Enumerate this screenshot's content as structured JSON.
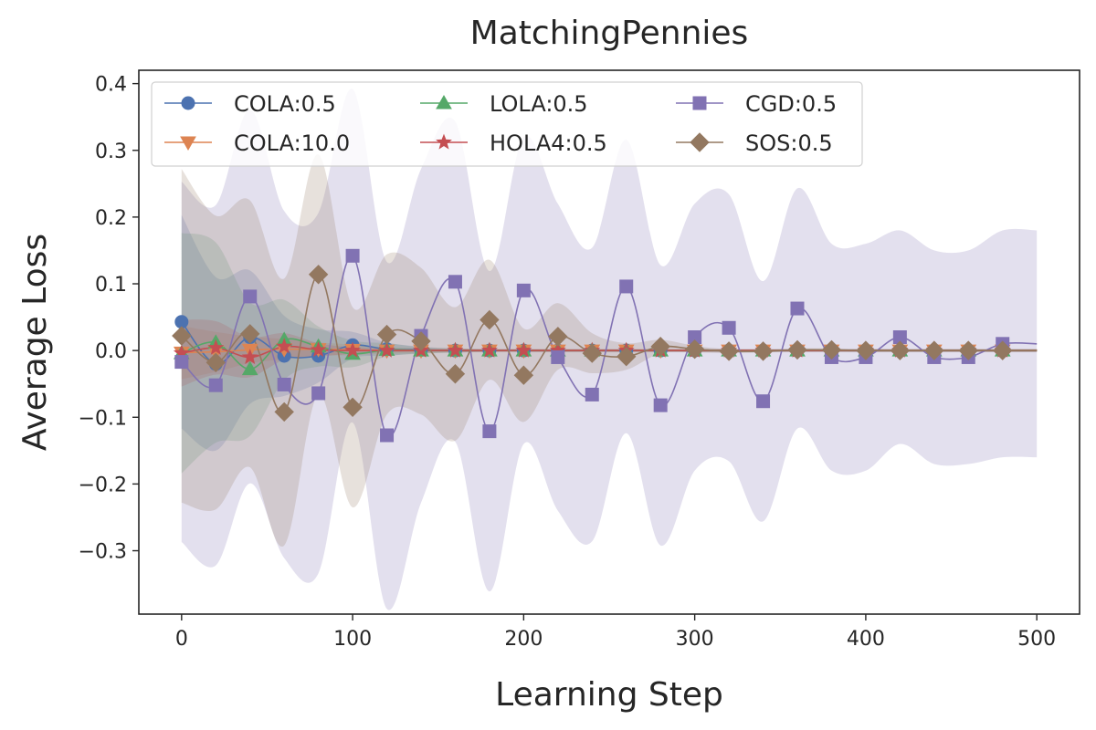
{
  "chart_data": {
    "type": "line",
    "title": "MatchingPennies",
    "xlabel": "Learning Step",
    "ylabel": "Average Loss",
    "xlim": [
      -25,
      525
    ],
    "ylim": [
      -0.395,
      0.42
    ],
    "xticks": [
      0,
      100,
      200,
      300,
      400,
      500
    ],
    "xtick_labels": [
      "0",
      "100",
      "200",
      "300",
      "400",
      "500"
    ],
    "yticks": [
      -0.3,
      -0.2,
      -0.1,
      0.0,
      0.1,
      0.2,
      0.3,
      0.4
    ],
    "ytick_labels": [
      "−0.3",
      "−0.2",
      "−0.1",
      "0.0",
      "0.1",
      "0.2",
      "0.3",
      "0.4"
    ],
    "legend_position": "top-left",
    "legend_columns": 3,
    "series": [
      {
        "name": "COLA:0.5",
        "color": "#4c72b0",
        "marker": "circle",
        "x": [
          0,
          20,
          40,
          60,
          80,
          100,
          120,
          140,
          160,
          180,
          200,
          220,
          240,
          260,
          280,
          300,
          320,
          340,
          360,
          380,
          400,
          420,
          440,
          460,
          480
        ],
        "y": [
          0.043,
          -0.02,
          0.02,
          -0.008,
          -0.008,
          0.008,
          0.002,
          0.001,
          0.0,
          0.0,
          0.0,
          0.0,
          0.0,
          0.0,
          0.0,
          0.0,
          0.0,
          0.0,
          0.0,
          0.0,
          0.0,
          0.0,
          0.0,
          0.0,
          0.0
        ],
        "band": [
          0.16,
          0.13,
          0.1,
          0.06,
          0.04,
          0.02,
          0.01,
          0.005,
          0.003,
          0.002,
          0.002,
          0.002,
          0.002,
          0.002,
          0.002,
          0.002,
          0.002,
          0.002,
          0.002,
          0.002,
          0.002,
          0.002,
          0.002,
          0.002,
          0.002
        ]
      },
      {
        "name": "COLA:10.0",
        "color": "#dd8452",
        "marker": "triangle-down",
        "x": [
          0,
          20,
          40,
          60,
          80,
          100,
          120,
          140,
          160,
          180,
          200,
          220,
          240,
          260,
          280,
          300,
          320,
          340,
          360,
          380,
          400,
          420,
          440,
          460,
          480
        ],
        "y": [
          -0.003,
          -0.002,
          0.001,
          0.002,
          0.002,
          0.001,
          0.0,
          0.0,
          0.0,
          0.0,
          0.0,
          0.0,
          0.0,
          0.0,
          0.0,
          0.0,
          0.0,
          0.0,
          0.0,
          0.0,
          0.0,
          0.0,
          0.0,
          0.0,
          0.0
        ],
        "band": [
          0.04,
          0.03,
          0.02,
          0.015,
          0.01,
          0.008,
          0.005,
          0.004,
          0.003,
          0.002,
          0.002,
          0.002,
          0.002,
          0.002,
          0.002,
          0.002,
          0.002,
          0.002,
          0.002,
          0.002,
          0.002,
          0.002,
          0.002,
          0.002,
          0.002
        ]
      },
      {
        "name": "LOLA:0.5",
        "color": "#55a868",
        "marker": "triangle-up",
        "x": [
          0,
          20,
          40,
          60,
          80,
          100,
          120,
          140,
          160,
          180,
          200,
          220,
          240,
          260,
          280,
          300,
          320,
          340,
          360,
          380,
          400,
          420,
          440,
          460,
          480
        ],
        "y": [
          -0.004,
          0.012,
          -0.028,
          0.016,
          0.006,
          -0.005,
          0.001,
          0.0,
          0.0,
          0.0,
          0.0,
          0.0,
          0.0,
          0.0,
          0.0,
          0.0,
          0.0,
          0.0,
          0.0,
          0.0,
          0.0,
          0.0,
          0.0,
          0.0,
          0.0
        ],
        "band": [
          0.18,
          0.15,
          0.1,
          0.06,
          0.03,
          0.02,
          0.01,
          0.005,
          0.003,
          0.002,
          0.002,
          0.002,
          0.002,
          0.002,
          0.002,
          0.002,
          0.002,
          0.002,
          0.002,
          0.002,
          0.002,
          0.002,
          0.002,
          0.002,
          0.002
        ]
      },
      {
        "name": "HOLA4:0.5",
        "color": "#c44e52",
        "marker": "star",
        "x": [
          0,
          20,
          40,
          60,
          80,
          100,
          120,
          140,
          160,
          180,
          200,
          220,
          240,
          260,
          280,
          300,
          320,
          340,
          360,
          380,
          400,
          420,
          440,
          460,
          480
        ],
        "y": [
          -0.004,
          0.004,
          -0.01,
          0.006,
          0.001,
          0.0,
          0.0,
          0.0,
          0.0,
          0.0,
          0.0,
          0.0,
          0.0,
          0.0,
          0.0,
          0.0,
          0.0,
          0.0,
          0.0,
          0.0,
          0.0,
          0.0,
          0.0,
          0.0,
          0.0
        ],
        "band": [
          0.05,
          0.04,
          0.03,
          0.02,
          0.01,
          0.005,
          0.003,
          0.002,
          0.002,
          0.002,
          0.002,
          0.002,
          0.002,
          0.002,
          0.002,
          0.002,
          0.002,
          0.002,
          0.002,
          0.002,
          0.002,
          0.002,
          0.002,
          0.002,
          0.002
        ]
      },
      {
        "name": "CGD:0.5",
        "color": "#8172b3",
        "marker": "square",
        "x": [
          0,
          20,
          40,
          60,
          80,
          100,
          120,
          140,
          160,
          180,
          200,
          220,
          240,
          260,
          280,
          300,
          320,
          340,
          360,
          380,
          400,
          420,
          440,
          460,
          480
        ],
        "y": [
          -0.017,
          -0.052,
          0.081,
          -0.051,
          -0.064,
          0.142,
          -0.127,
          0.022,
          0.103,
          -0.121,
          0.09,
          -0.01,
          -0.066,
          0.096,
          -0.082,
          0.02,
          0.034,
          -0.076,
          0.063,
          -0.01,
          -0.01,
          0.02,
          -0.01,
          -0.01,
          0.01
        ],
        "band": [
          0.27,
          0.27,
          0.28,
          0.26,
          0.27,
          0.25,
          0.26,
          0.25,
          0.24,
          0.24,
          0.23,
          0.23,
          0.22,
          0.22,
          0.21,
          0.2,
          0.2,
          0.18,
          0.18,
          0.17,
          0.17,
          0.16,
          0.16,
          0.16,
          0.17
        ]
      },
      {
        "name": "SOS:0.5",
        "color": "#937860",
        "marker": "diamond",
        "x": [
          0,
          20,
          40,
          60,
          80,
          100,
          120,
          140,
          160,
          180,
          200,
          220,
          240,
          260,
          280,
          300,
          320,
          340,
          360,
          380,
          400,
          420,
          440,
          460,
          480
        ],
        "y": [
          0.022,
          -0.018,
          0.025,
          -0.092,
          0.114,
          -0.085,
          0.024,
          0.014,
          -0.035,
          0.046,
          -0.037,
          0.021,
          -0.004,
          -0.009,
          0.006,
          0.002,
          -0.001,
          -0.001,
          0.001,
          0.001,
          0.0,
          0.0,
          0.0,
          0.0,
          0.0
        ],
        "band": [
          0.25,
          0.22,
          0.2,
          0.2,
          0.18,
          0.15,
          0.12,
          0.11,
          0.1,
          0.09,
          0.07,
          0.05,
          0.03,
          0.02,
          0.01,
          0.005,
          0.003,
          0.002,
          0.002,
          0.002,
          0.002,
          0.002,
          0.002,
          0.002,
          0.002
        ]
      }
    ]
  }
}
